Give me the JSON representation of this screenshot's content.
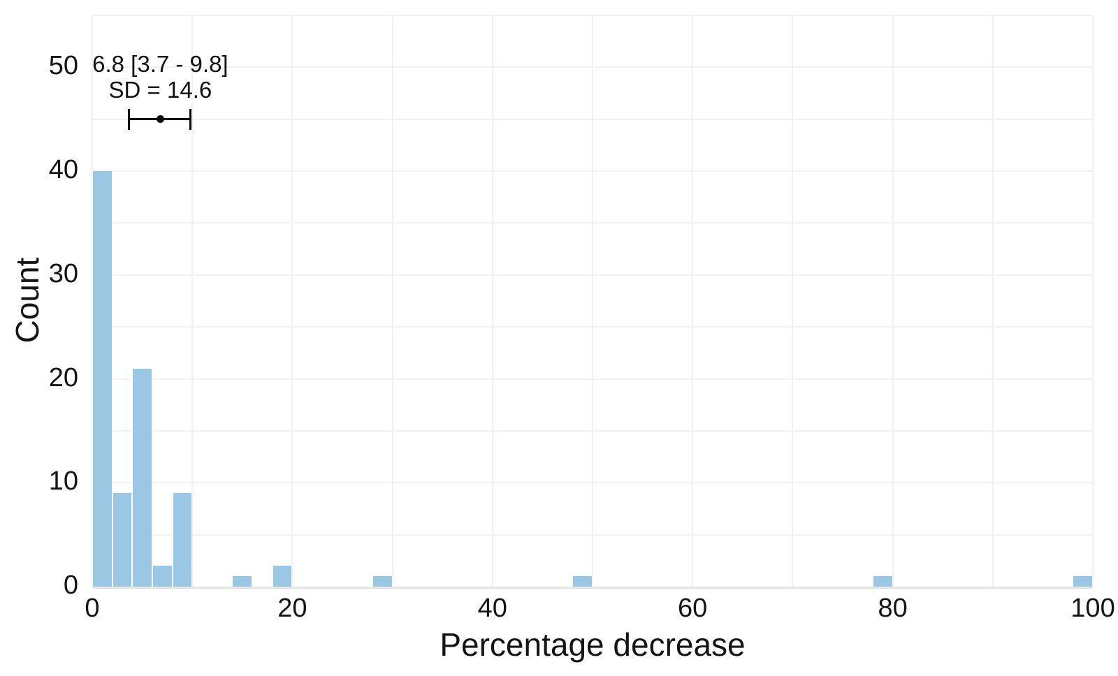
{
  "background_color": "#ffffff",
  "grid_color": "#f2f2f2",
  "axis_line_color": "#e4e4e4",
  "text_color": "#141414",
  "chart_data": {
    "type": "bar",
    "subtype": "histogram",
    "title": "",
    "xlabel": "Percentage decrease",
    "ylabel": "Count",
    "bar_color": "#9ac8e4",
    "xlim": [
      0,
      100
    ],
    "ylim": [
      0,
      55
    ],
    "x_ticks": [
      0,
      20,
      40,
      60,
      80,
      100
    ],
    "y_ticks": [
      0,
      10,
      20,
      30,
      40,
      50
    ],
    "x_grid_step": 10,
    "y_grid_step": 5,
    "grid": true,
    "legend": null,
    "bin_width": 2,
    "bins": [
      {
        "x0": 0,
        "x1": 2,
        "count": 40
      },
      {
        "x0": 2,
        "x1": 4,
        "count": 9
      },
      {
        "x0": 4,
        "x1": 6,
        "count": 21
      },
      {
        "x0": 6,
        "x1": 8,
        "count": 2
      },
      {
        "x0": 8,
        "x1": 10,
        "count": 9
      },
      {
        "x0": 14,
        "x1": 16,
        "count": 1
      },
      {
        "x0": 18,
        "x1": 20,
        "count": 2
      },
      {
        "x0": 28,
        "x1": 30,
        "count": 1
      },
      {
        "x0": 48,
        "x1": 50,
        "count": 1
      },
      {
        "x0": 78,
        "x1": 80,
        "count": 1
      },
      {
        "x0": 98,
        "x1": 100,
        "count": 1
      }
    ],
    "annotation": {
      "line1": "6.8 [3.7 - 9.8]",
      "line2": "SD = 14.6",
      "mean": 6.8,
      "ci_low": 3.7,
      "ci_high": 9.8,
      "sd": 14.6,
      "errorbar_y": 45,
      "color": "#0a0a0a"
    }
  }
}
